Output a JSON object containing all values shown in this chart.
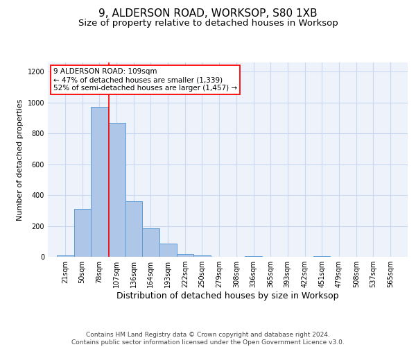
{
  "title": "9, ALDERSON ROAD, WORKSOP, S80 1XB",
  "subtitle": "Size of property relative to detached houses in Worksop",
  "xlabel": "Distribution of detached houses by size in Worksop",
  "ylabel": "Number of detached properties",
  "footer": "Contains HM Land Registry data © Crown copyright and database right 2024.\nContains public sector information licensed under the Open Government Licence v3.0.",
  "bar_edges": [
    21,
    50,
    78,
    107,
    136,
    164,
    193,
    222,
    250,
    279,
    308,
    336,
    365,
    393,
    422,
    451,
    479,
    508,
    537,
    565,
    594
  ],
  "bar_heights": [
    10,
    310,
    970,
    870,
    360,
    185,
    85,
    20,
    10,
    0,
    0,
    5,
    0,
    0,
    0,
    5,
    0,
    0,
    0,
    0
  ],
  "bar_color": "#aec6e8",
  "bar_edgecolor": "#5b9bd5",
  "red_line_x": 109,
  "ylim": [
    0,
    1260
  ],
  "yticks": [
    0,
    200,
    400,
    600,
    800,
    1000,
    1200
  ],
  "annotation_text": "9 ALDERSON ROAD: 109sqm\n← 47% of detached houses are smaller (1,339)\n52% of semi-detached houses are larger (1,457) →",
  "bg_color": "#eef2fa",
  "grid_color": "#c8d8f0",
  "title_fontsize": 11,
  "subtitle_fontsize": 9.5,
  "xlabel_fontsize": 9,
  "ylabel_fontsize": 8,
  "tick_fontsize": 7,
  "annotation_fontsize": 7.5,
  "footer_fontsize": 6.5
}
